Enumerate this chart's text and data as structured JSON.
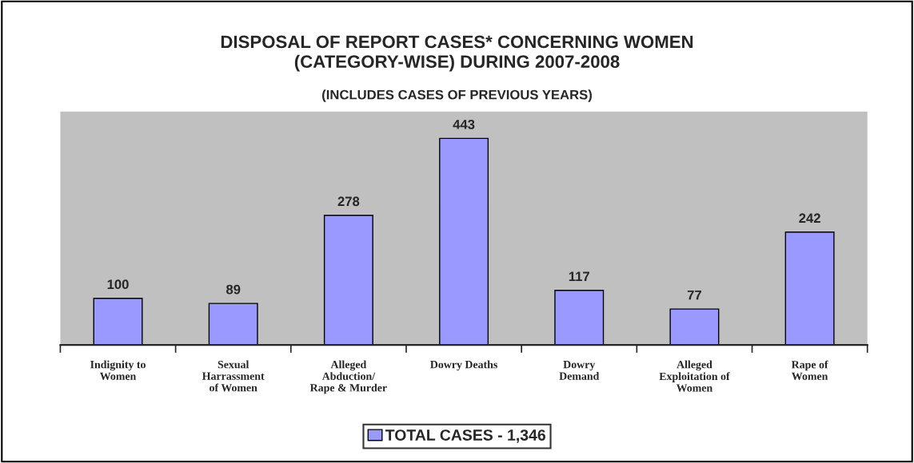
{
  "chart_data": {
    "type": "bar",
    "title": "DISPOSAL OF REPORT CASES* CONCERNING WOMEN\n(CATEGORY-WISE) DURING 2007-2008",
    "subtitle": "(INCLUDES CASES OF PREVIOUS YEARS)",
    "categories": [
      "Indignity to\nWomen",
      "Sexual\nHarrassment\nof Women",
      "Alleged\nAbduction/\nRape & Murder",
      "Dowry Deaths",
      "Dowry\nDemand",
      "Alleged\nExploitation of\nWomen",
      "Rape of\nWomen"
    ],
    "series": [
      {
        "name": "TOTAL CASES - 1,346",
        "color": "#9999ff",
        "values": [
          100,
          89,
          278,
          443,
          117,
          77,
          242
        ]
      }
    ],
    "data_labels": true,
    "legend": "bottom",
    "grid": false,
    "tick_labels": "x"
  }
}
